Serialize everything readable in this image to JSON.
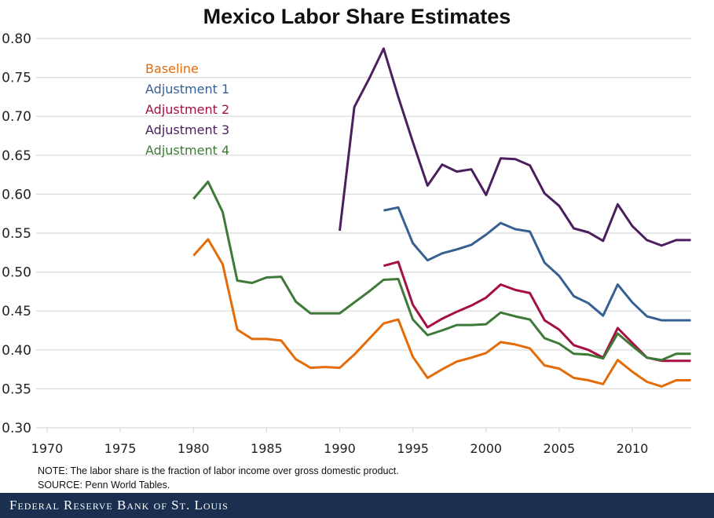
{
  "chart_data": {
    "type": "line",
    "title": "Mexico Labor Share Estimates",
    "xlabel": "",
    "ylabel": "",
    "xlim": [
      1970,
      2014
    ],
    "ylim": [
      0.3,
      0.8
    ],
    "xticks": [
      "1970",
      "1975",
      "1980",
      "1985",
      "1990",
      "1995",
      "2000",
      "2005",
      "2010"
    ],
    "yticks": [
      "0.30",
      "0.35",
      "0.40",
      "0.45",
      "0.50",
      "0.55",
      "0.60",
      "0.65",
      "0.70",
      "0.75",
      "0.80"
    ],
    "grid": "horizontal",
    "legend_placement": "top-left",
    "x": [
      1980,
      1981,
      1982,
      1983,
      1984,
      1985,
      1986,
      1987,
      1988,
      1989,
      1990,
      1991,
      1992,
      1993,
      1994,
      1995,
      1996,
      1997,
      1998,
      1999,
      2000,
      2001,
      2002,
      2003,
      2004,
      2005,
      2006,
      2007,
      2008,
      2009,
      2010,
      2011,
      2012,
      2013,
      2014
    ],
    "series": [
      {
        "name": "Baseline",
        "color": "#E36C09",
        "values": [
          0.521,
          0.542,
          0.51,
          0.426,
          0.414,
          0.414,
          0.412,
          0.388,
          0.377,
          0.378,
          0.377,
          0.394,
          0.414,
          0.434,
          0.439,
          0.391,
          0.364,
          0.375,
          0.385,
          0.39,
          0.396,
          0.41,
          0.407,
          0.402,
          0.38,
          0.376,
          0.364,
          0.361,
          0.356,
          0.387,
          0.372,
          0.359,
          0.353,
          0.361,
          0.361
        ]
      },
      {
        "name": "Adjustment 1",
        "color": "#376092",
        "values": [
          null,
          null,
          null,
          null,
          null,
          null,
          null,
          null,
          null,
          null,
          null,
          null,
          null,
          0.579,
          0.583,
          0.537,
          0.515,
          0.524,
          0.529,
          0.535,
          0.548,
          0.563,
          0.555,
          0.552,
          0.512,
          0.495,
          0.469,
          0.46,
          0.444,
          0.484,
          0.461,
          0.443,
          0.438,
          0.438,
          0.438
        ]
      },
      {
        "name": "Adjustment 2",
        "color": "#A50F42",
        "values": [
          null,
          null,
          null,
          null,
          null,
          null,
          null,
          null,
          null,
          null,
          null,
          null,
          null,
          0.508,
          0.513,
          0.458,
          0.429,
          0.44,
          0.449,
          0.457,
          0.467,
          0.484,
          0.477,
          0.473,
          0.438,
          0.426,
          0.406,
          0.4,
          0.39,
          0.428,
          0.409,
          0.39,
          0.386,
          0.386,
          0.386
        ]
      },
      {
        "name": "Adjustment 3",
        "color": "#4B1E5E",
        "values": [
          null,
          null,
          null,
          null,
          null,
          null,
          null,
          null,
          null,
          null,
          0.553,
          0.712,
          0.748,
          0.787,
          0.725,
          0.667,
          0.611,
          0.638,
          0.629,
          0.632,
          0.599,
          0.646,
          0.645,
          0.637,
          0.601,
          0.585,
          0.556,
          0.551,
          0.54,
          0.587,
          0.559,
          0.541,
          0.534,
          0.541,
          0.541
        ]
      },
      {
        "name": "Adjustment 4",
        "color": "#3E7A37",
        "values": [
          0.594,
          0.616,
          0.577,
          0.489,
          0.486,
          0.493,
          0.494,
          0.462,
          0.447,
          0.447,
          0.447,
          0.461,
          0.475,
          0.49,
          0.491,
          0.439,
          0.419,
          0.425,
          0.432,
          0.432,
          0.433,
          0.448,
          0.443,
          0.439,
          0.415,
          0.408,
          0.395,
          0.394,
          0.389,
          0.421,
          0.405,
          0.39,
          0.387,
          0.395,
          0.395
        ]
      }
    ]
  },
  "notes": {
    "note": "NOTE: The labor share is the fraction of labor income over gross domestic product.",
    "source": "SOURCE: Penn World Tables."
  },
  "footer": {
    "brand": "Federal Reserve Bank of St. Louis"
  }
}
